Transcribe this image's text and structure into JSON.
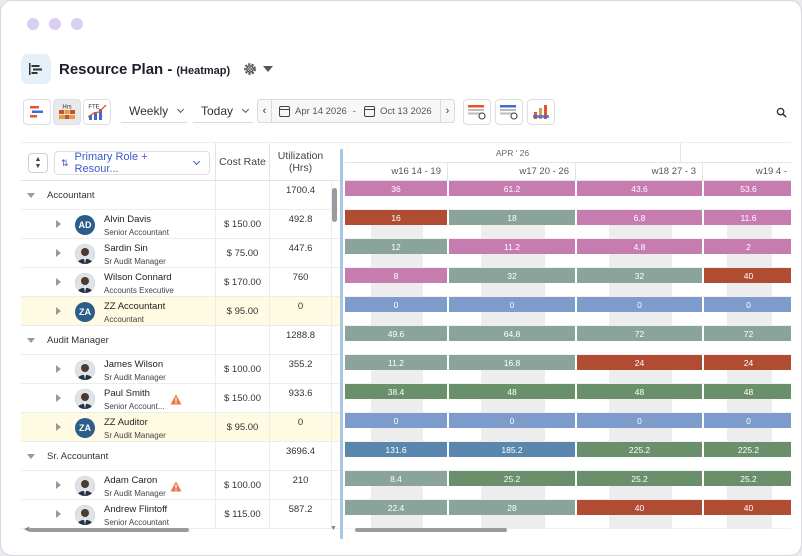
{
  "header": {
    "title": "Resource Plan -",
    "subtitle": "(Heatmap)"
  },
  "toolbar": {
    "view_buttons": [
      "gantt-view",
      "hrs",
      "fte"
    ],
    "hrs_label": "Hrs",
    "fte_label": "FTE",
    "period": "Weekly",
    "today": "Today",
    "date_from": "Apr 14 2026",
    "date_sep": "-",
    "date_to": "Oct 13 2026"
  },
  "columns": {
    "filter": "Primary Role + Resour...",
    "cost_rate": "Cost Rate",
    "utilization": "Utilization (Hrs)"
  },
  "timeline": {
    "month": "APR ' 26",
    "weeks": [
      "w16 14 - 19",
      "w17 20 - 26",
      "w18 27 - 3",
      "w19 4 -"
    ]
  },
  "colors": {
    "pink": "#c77cb0",
    "sage": "#8ba49b",
    "rust": "#b04c31",
    "blue": "#7d9ccb",
    "green": "#6a8f6b",
    "steel": "#5986ad"
  },
  "rows": [
    {
      "type": "group",
      "name": "Accountant",
      "utilization": "1700.4",
      "cells": [
        {
          "v": "36",
          "c": "pink"
        },
        {
          "v": "61.2",
          "c": "pink"
        },
        {
          "v": "43.6",
          "c": "pink"
        },
        {
          "v": "53.6",
          "c": "pink"
        }
      ]
    },
    {
      "type": "person",
      "name": "Alvin Davis",
      "title": "Senior Accountant",
      "avatar": "AD",
      "rate": "$ 150.00",
      "utilization": "492.8",
      "cells": [
        {
          "v": "16",
          "c": "rust"
        },
        {
          "v": "18",
          "c": "sage"
        },
        {
          "v": "6.8",
          "c": "pink"
        },
        {
          "v": "11.6",
          "c": "pink"
        }
      ]
    },
    {
      "type": "person",
      "name": "Sardin Sin",
      "title": "Sr Audit Manager",
      "avatar": "photo",
      "rate": "$ 75.00",
      "utilization": "447.6",
      "cells": [
        {
          "v": "12",
          "c": "sage"
        },
        {
          "v": "11.2",
          "c": "pink"
        },
        {
          "v": "4.8",
          "c": "pink"
        },
        {
          "v": "2",
          "c": "pink"
        }
      ]
    },
    {
      "type": "person",
      "name": "Wilson Connard",
      "title": "Accounts Executive",
      "avatar": "photo",
      "rate": "$ 170.00",
      "utilization": "760",
      "cells": [
        {
          "v": "8",
          "c": "pink"
        },
        {
          "v": "32",
          "c": "sage"
        },
        {
          "v": "32",
          "c": "sage"
        },
        {
          "v": "40",
          "c": "rust"
        }
      ]
    },
    {
      "type": "person",
      "highlight": true,
      "name": "ZZ Accountant",
      "title": "Accountant",
      "avatar": "ZA",
      "rate": "$ 95.00",
      "utilization": "0",
      "cells": [
        {
          "v": "0",
          "c": "blue"
        },
        {
          "v": "0",
          "c": "blue"
        },
        {
          "v": "0",
          "c": "blue"
        },
        {
          "v": "0",
          "c": "blue"
        }
      ]
    },
    {
      "type": "group",
      "name": "Audit Manager",
      "utilization": "1288.8",
      "cells": [
        {
          "v": "49.6",
          "c": "sage"
        },
        {
          "v": "64.8",
          "c": "sage"
        },
        {
          "v": "72",
          "c": "sage"
        },
        {
          "v": "72",
          "c": "sage"
        }
      ]
    },
    {
      "type": "person",
      "name": "James Wilson",
      "title": "Sr Audit Manager",
      "avatar": "photo",
      "rate": "$ 100.00",
      "utilization": "355.2",
      "cells": [
        {
          "v": "11.2",
          "c": "sage"
        },
        {
          "v": "16.8",
          "c": "sage"
        },
        {
          "v": "24",
          "c": "rust"
        },
        {
          "v": "24",
          "c": "rust"
        }
      ]
    },
    {
      "type": "person",
      "name": "Paul Smith",
      "title": "Senior Account...",
      "avatar": "photo",
      "rate": "$ 150.00",
      "utilization": "933.6",
      "warning": true,
      "cells": [
        {
          "v": "38.4",
          "c": "green"
        },
        {
          "v": "48",
          "c": "green"
        },
        {
          "v": "48",
          "c": "green"
        },
        {
          "v": "48",
          "c": "green"
        }
      ]
    },
    {
      "type": "person",
      "highlight": true,
      "name": "ZZ Auditor",
      "title": "Sr Audit Manager",
      "avatar": "ZA",
      "rate": "$ 95.00",
      "utilization": "0",
      "cells": [
        {
          "v": "0",
          "c": "blue"
        },
        {
          "v": "0",
          "c": "blue"
        },
        {
          "v": "0",
          "c": "blue"
        },
        {
          "v": "0",
          "c": "blue"
        }
      ]
    },
    {
      "type": "group",
      "name": "Sr. Accountant",
      "utilization": "3696.4",
      "cells": [
        {
          "v": "131.6",
          "c": "steel"
        },
        {
          "v": "185.2",
          "c": "steel"
        },
        {
          "v": "225.2",
          "c": "green"
        },
        {
          "v": "225.2",
          "c": "green"
        }
      ]
    },
    {
      "type": "person",
      "name": "Adam Caron",
      "title": "Sr Audit Manager",
      "avatar": "photo",
      "rate": "$ 100.00",
      "utilization": "210",
      "warning": true,
      "cells": [
        {
          "v": "8.4",
          "c": "sage"
        },
        {
          "v": "25.2",
          "c": "green"
        },
        {
          "v": "25.2",
          "c": "green"
        },
        {
          "v": "25.2",
          "c": "green"
        }
      ]
    },
    {
      "type": "person",
      "name": "Andrew Flintoff",
      "title": "Senior Accountant",
      "avatar": "photo",
      "rate": "$ 115.00",
      "utilization": "587.2",
      "cells": [
        {
          "v": "22.4",
          "c": "sage"
        },
        {
          "v": "28",
          "c": "sage"
        },
        {
          "v": "40",
          "c": "rust"
        },
        {
          "v": "40",
          "c": "rust"
        }
      ]
    }
  ]
}
